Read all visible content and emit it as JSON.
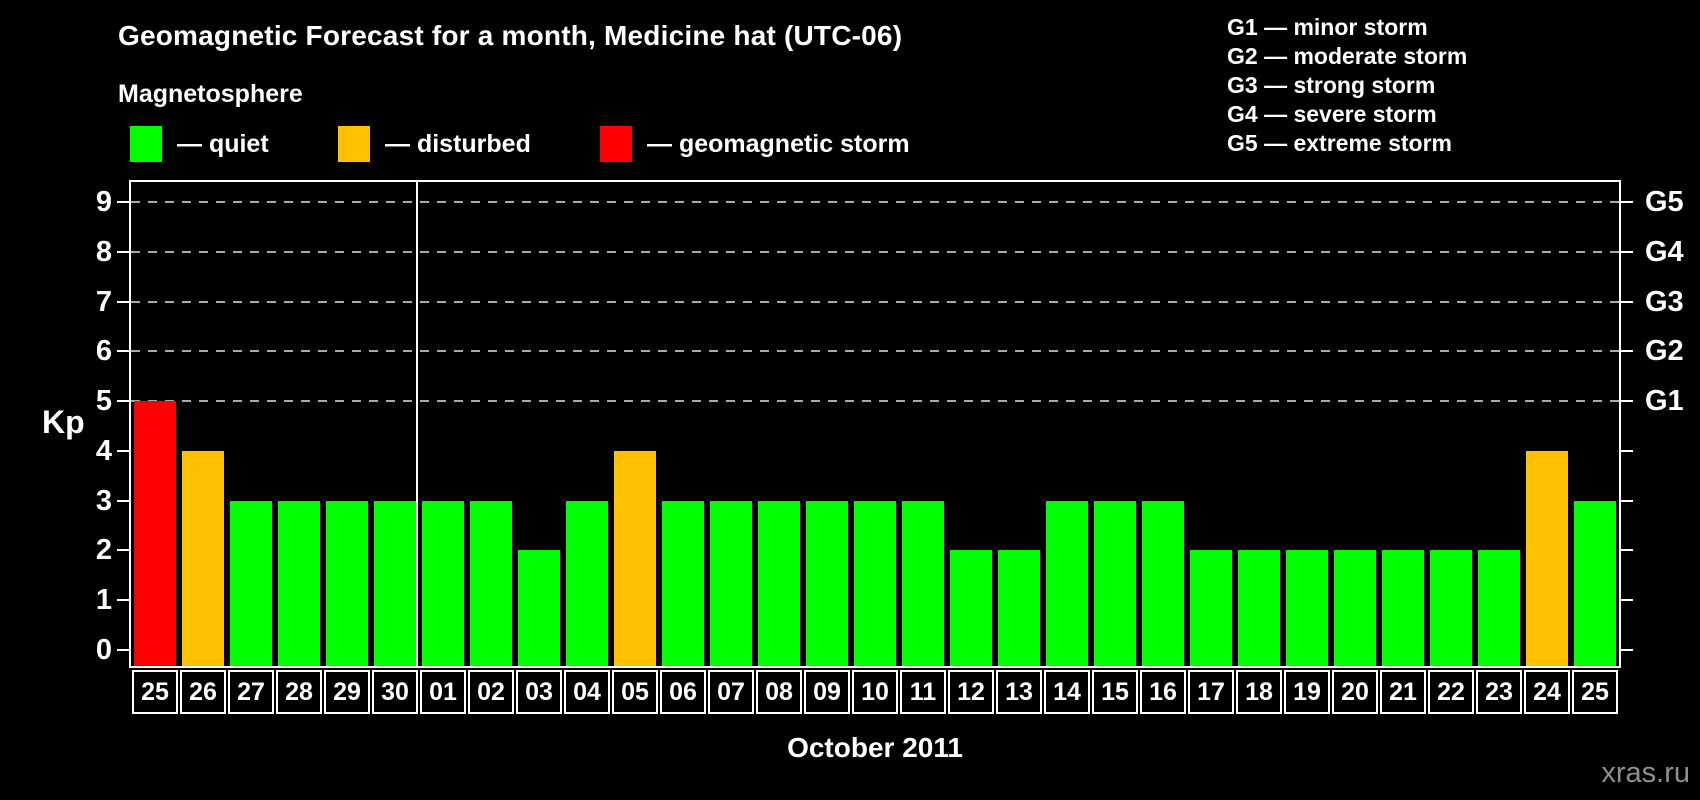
{
  "title": "Geomagnetic Forecast for a month, Medicine hat (UTC-06)",
  "subtitle": "Magnetosphere",
  "colors": {
    "quiet": "#00ff00",
    "disturbed": "#ffc000",
    "storm": "#ff0000",
    "frame": "#ffffff",
    "grid": "#aaaaaa",
    "background": "#000000",
    "watermark": "#8f8f8f"
  },
  "legend": {
    "items": [
      {
        "key": "quiet",
        "label": "— quiet",
        "color": "#00ff00"
      },
      {
        "key": "disturbed",
        "label": "— disturbed",
        "color": "#ffc000"
      },
      {
        "key": "storm",
        "label": "— geomagnetic storm",
        "color": "#ff0000"
      }
    ]
  },
  "g_legend": [
    "G1 — minor storm",
    "G2 — moderate storm",
    "G3 — strong storm",
    "G4 — severe storm",
    "G5 — extreme storm"
  ],
  "chart_data": {
    "type": "bar",
    "title": "Geomagnetic Forecast for a month, Medicine hat (UTC-06)",
    "xlabel": "October 2011",
    "ylabel": "Kp",
    "ylim": [
      0,
      9.4
    ],
    "yticks": [
      0,
      1,
      2,
      3,
      4,
      5,
      6,
      7,
      8,
      9
    ],
    "gridlines_at": [
      5,
      6,
      7,
      8,
      9
    ],
    "grid_style": "dashed",
    "legend_position": "top",
    "g_axis": [
      {
        "kp": 5,
        "label": "G1"
      },
      {
        "kp": 6,
        "label": "G2"
      },
      {
        "kp": 7,
        "label": "G3"
      },
      {
        "kp": 8,
        "label": "G4"
      },
      {
        "kp": 9,
        "label": "G5"
      }
    ],
    "categories": [
      "25",
      "26",
      "27",
      "28",
      "29",
      "30",
      "01",
      "02",
      "03",
      "04",
      "05",
      "06",
      "07",
      "08",
      "09",
      "10",
      "11",
      "12",
      "13",
      "14",
      "15",
      "16",
      "17",
      "18",
      "19",
      "20",
      "21",
      "22",
      "23",
      "24",
      "25"
    ],
    "values": [
      5,
      4,
      3,
      3,
      3,
      3,
      3,
      3,
      2,
      3,
      4,
      3,
      3,
      3,
      3,
      3,
      3,
      2,
      2,
      3,
      3,
      3,
      2,
      2,
      2,
      2,
      2,
      2,
      2,
      4,
      3
    ],
    "status": [
      "storm",
      "disturbed",
      "quiet",
      "quiet",
      "quiet",
      "quiet",
      "quiet",
      "quiet",
      "quiet",
      "quiet",
      "disturbed",
      "quiet",
      "quiet",
      "quiet",
      "quiet",
      "quiet",
      "quiet",
      "quiet",
      "quiet",
      "quiet",
      "quiet",
      "quiet",
      "quiet",
      "quiet",
      "quiet",
      "quiet",
      "quiet",
      "quiet",
      "quiet",
      "disturbed",
      "quiet"
    ],
    "month_separator_after_index": 5
  },
  "footer": {
    "month_label": "October 2011",
    "watermark": "xras.ru"
  }
}
